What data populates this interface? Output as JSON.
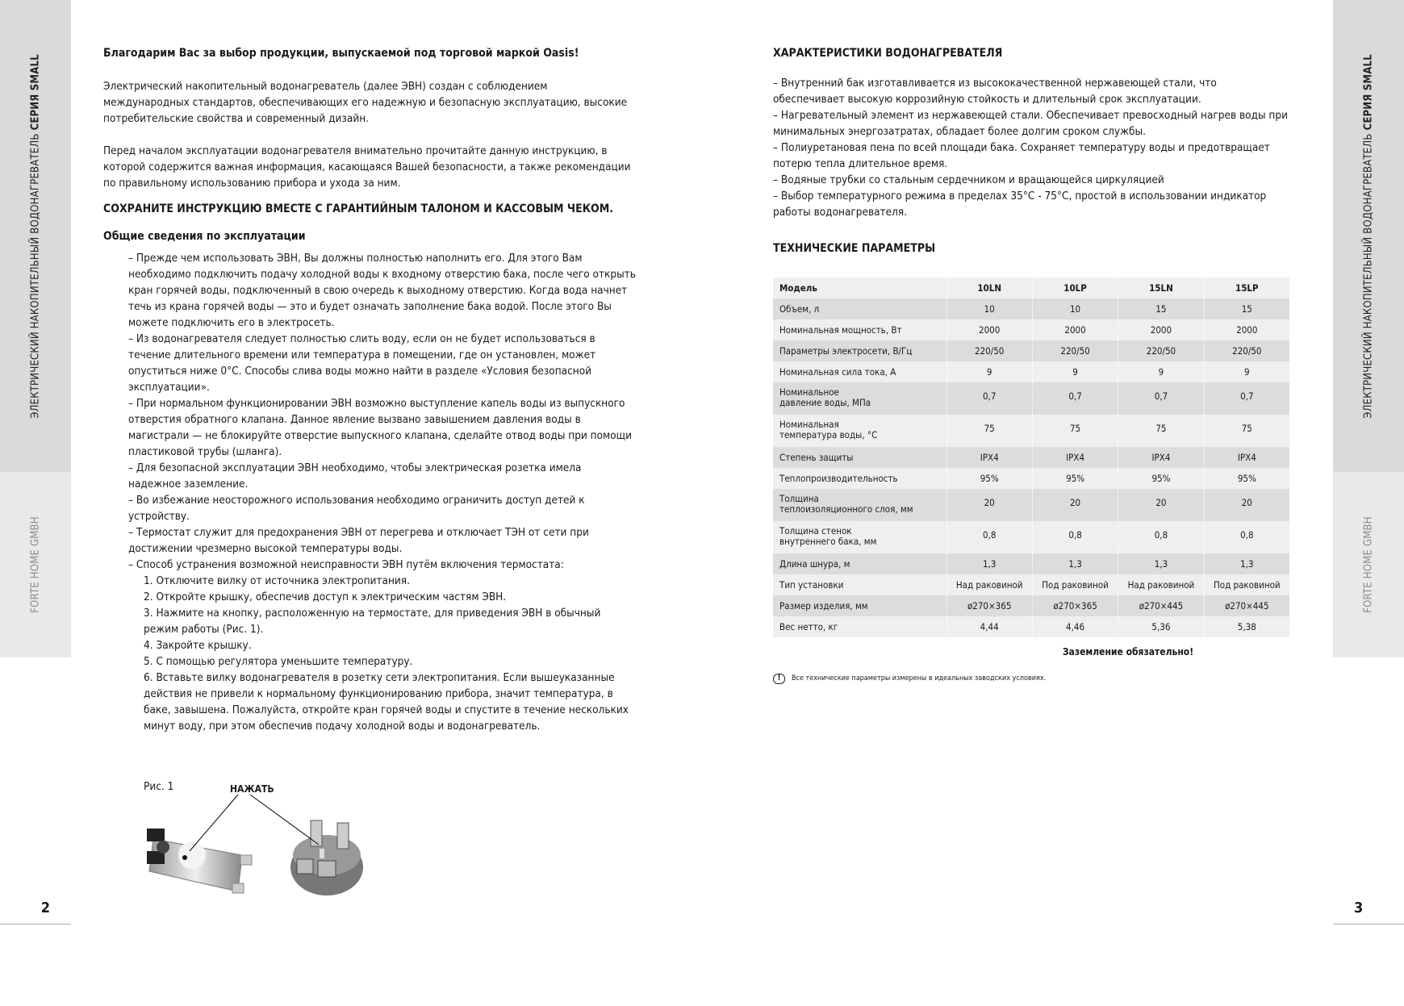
{
  "sidebar": {
    "title_regular": "ЭЛЕКТРИЧЕСКИЙ НАКОПИТЕЛЬНЫЙ ВОДОНАГРЕВАТЕЛЬ ",
    "title_bold": "СЕРИЯ SMALL",
    "company": "FORTE HOME GMBH"
  },
  "pages": {
    "left_number": "2",
    "right_number": "3"
  },
  "left": {
    "greeting": "Благодарим Вас за выбор продукции, выпускаемой под торговой маркой Oasis!",
    "intro1": "Электрический накопительный водонагреватель (далее ЭВН) создан с соблюдением международных стандартов, обеспечивающих его надежную и безопасную эксплуатацию, высокие потребительские свойства и современный дизайн.",
    "intro2": "Перед началом эксплуатации водонагревателя внимательно прочитайте данную инструкцию, в которой содержится важная информация, касающаяся Вашей безопасности, а также рекомендации по правильному использованию прибора и ухода за ним.",
    "save_notice": "СОХРАНИТЕ ИНСТРУКЦИЮ ВМЕСТЕ С ГАРАНТИЙНЫМ ТАЛОНОМ И КАССОВЫМ ЧЕКОМ.",
    "general_title": "Общие сведения по эксплуатации",
    "items": [
      "– Прежде чем использовать ЭВН, Вы должны полностью наполнить его. Для этого Вам необходимо подключить подачу холодной воды к входному отверстию бака, после чего открыть кран горячей воды, подключенный в свою очередь к выходному отверстию. Когда вода начнет течь из крана горячей воды — это и будет означать заполнение бака водой. После этого Вы можете подключить его в электросеть.",
      "– Из водонагревателя следует полностью слить воду, если он не будет использоваться в течение длительного времени или температура в помещении, где он установлен, может опуститься ниже 0°С. Способы слива воды можно найти в разделе «Условия безопасной эксплуатации».",
      "– При нормальном функционировании ЭВН возможно выступление капель воды из выпускного отверстия обратного клапана. Данное явление вызвано завышением давления воды в магистрали — не блокируйте отверстие выпускного клапана, сделайте отвод воды при помощи пластиковой трубы (шланга).",
      "– Для безопасной эксплуатации ЭВН необходимо, чтобы электрическая розетка имела надежное заземление.",
      "– Во избежание неосторожного использования необходимо ограничить доступ детей к устройству.",
      "– Термостат служит для предохранения ЭВН от перегрева и отключает ТЭН от сети при достижении чрезмерно высокой температуры воды.",
      "– Способ устранения возможной неисправности ЭВН путём включения термостата:"
    ],
    "steps": [
      "1. Отключите вилку от источника электропитания.",
      "2. Откройте крышку, обеспечив доступ к электрическим частям ЭВН.",
      "3. Нажмите на кнопку, расположенную на термостате, для приведения ЭВН в обычный режим работы (Рис. 1).",
      "4. Закройте крышку.",
      "5. С помощью  регулятора уменьшите температуру.",
      "6. Вставьте вилку водонагревателя в розетку сети электропитания. Если вышеуказанные действия не привели к нормальному функционированию прибора, значит температура, в баке, завышена. Пожалуйста, откройте кран горячей воды и спустите в течение нескольких минут воду, при этом обеспечив подачу холодной воды и водонагреватель."
    ],
    "figure_label": "Рис. 1",
    "figure_callout": "НАЖАТЬ"
  },
  "right": {
    "features_title": "ХАРАКТЕРИСТИКИ ВОДОНАГРЕВАТЕЛЯ",
    "features": [
      "– Внутренний бак изготавливается из высококачественной нержавеющей стали, что обеспечивает высокую коррозийную стойкость и длительный срок эксплуатации.",
      "– Нагревательный элемент из нержавеющей стали. Обеспечивает превосходный нагрев воды при минимальных энергозатратах, обладает более долгим сроком службы.",
      "– Полиуретановая пена по всей площади бака. Сохраняет температуру воды и предотвращает потерю тепла длительное время.",
      "– Водяные трубки со стальным сердечником и вращающейся циркуляцией",
      "– Выбор температурного режима в пределах 35°С - 75°С, простой в использовании индикатор работы водонагревателя."
    ],
    "tech_title": "ТЕХНИЧЕСКИЕ ПАРАМЕТРЫ",
    "table": {
      "header": [
        "Модель",
        "10LN",
        "10LP",
        "15LN",
        "15LP"
      ],
      "rows": [
        [
          "Объем, л",
          "10",
          "10",
          "15",
          "15"
        ],
        [
          "Номинальная мощность, Вт",
          "2000",
          "2000",
          "2000",
          "2000"
        ],
        [
          "Параметры электросети, В/Гц",
          "220/50",
          "220/50",
          "220/50",
          "220/50"
        ],
        [
          "Номинальная сила тока, А",
          "9",
          "9",
          "9",
          "9"
        ],
        [
          "Номинальное\nдавление воды, МПа",
          "0,7",
          "0,7",
          "0,7",
          "0,7"
        ],
        [
          "Номинальная\nтемпература воды, °С",
          "75",
          "75",
          "75",
          "75"
        ],
        [
          "Степень защиты",
          "IPX4",
          "IPX4",
          "IPX4",
          "IPX4"
        ],
        [
          "Теплопроизводительность",
          "95%",
          "95%",
          "95%",
          "95%"
        ],
        [
          "Толщина\nтеплоизоляционного слоя, мм",
          "20",
          "20",
          "20",
          "20"
        ],
        [
          "Толщина стенок\nвнутреннего бака, мм",
          "0,8",
          "0,8",
          "0,8",
          "0,8"
        ],
        [
          "Длина шнура, м",
          "1,3",
          "1,3",
          "1,3",
          "1,3"
        ],
        [
          "Тип установки",
          "Над раковиной",
          "Под раковиной",
          "Над раковиной",
          "Под раковиной"
        ],
        [
          "Размер изделия, мм",
          "ø270×365",
          "ø270×365",
          "ø270×445",
          "ø270×445"
        ],
        [
          "Вес нетто, кг",
          "4,44",
          "4,46",
          "5,36",
          "5,38"
        ]
      ]
    },
    "grounding": "Заземление обязательно!",
    "note": "Все технические параметры измерены в идеальных заводских условиях.",
    "note_icon": "exclamation-circle-icon"
  }
}
